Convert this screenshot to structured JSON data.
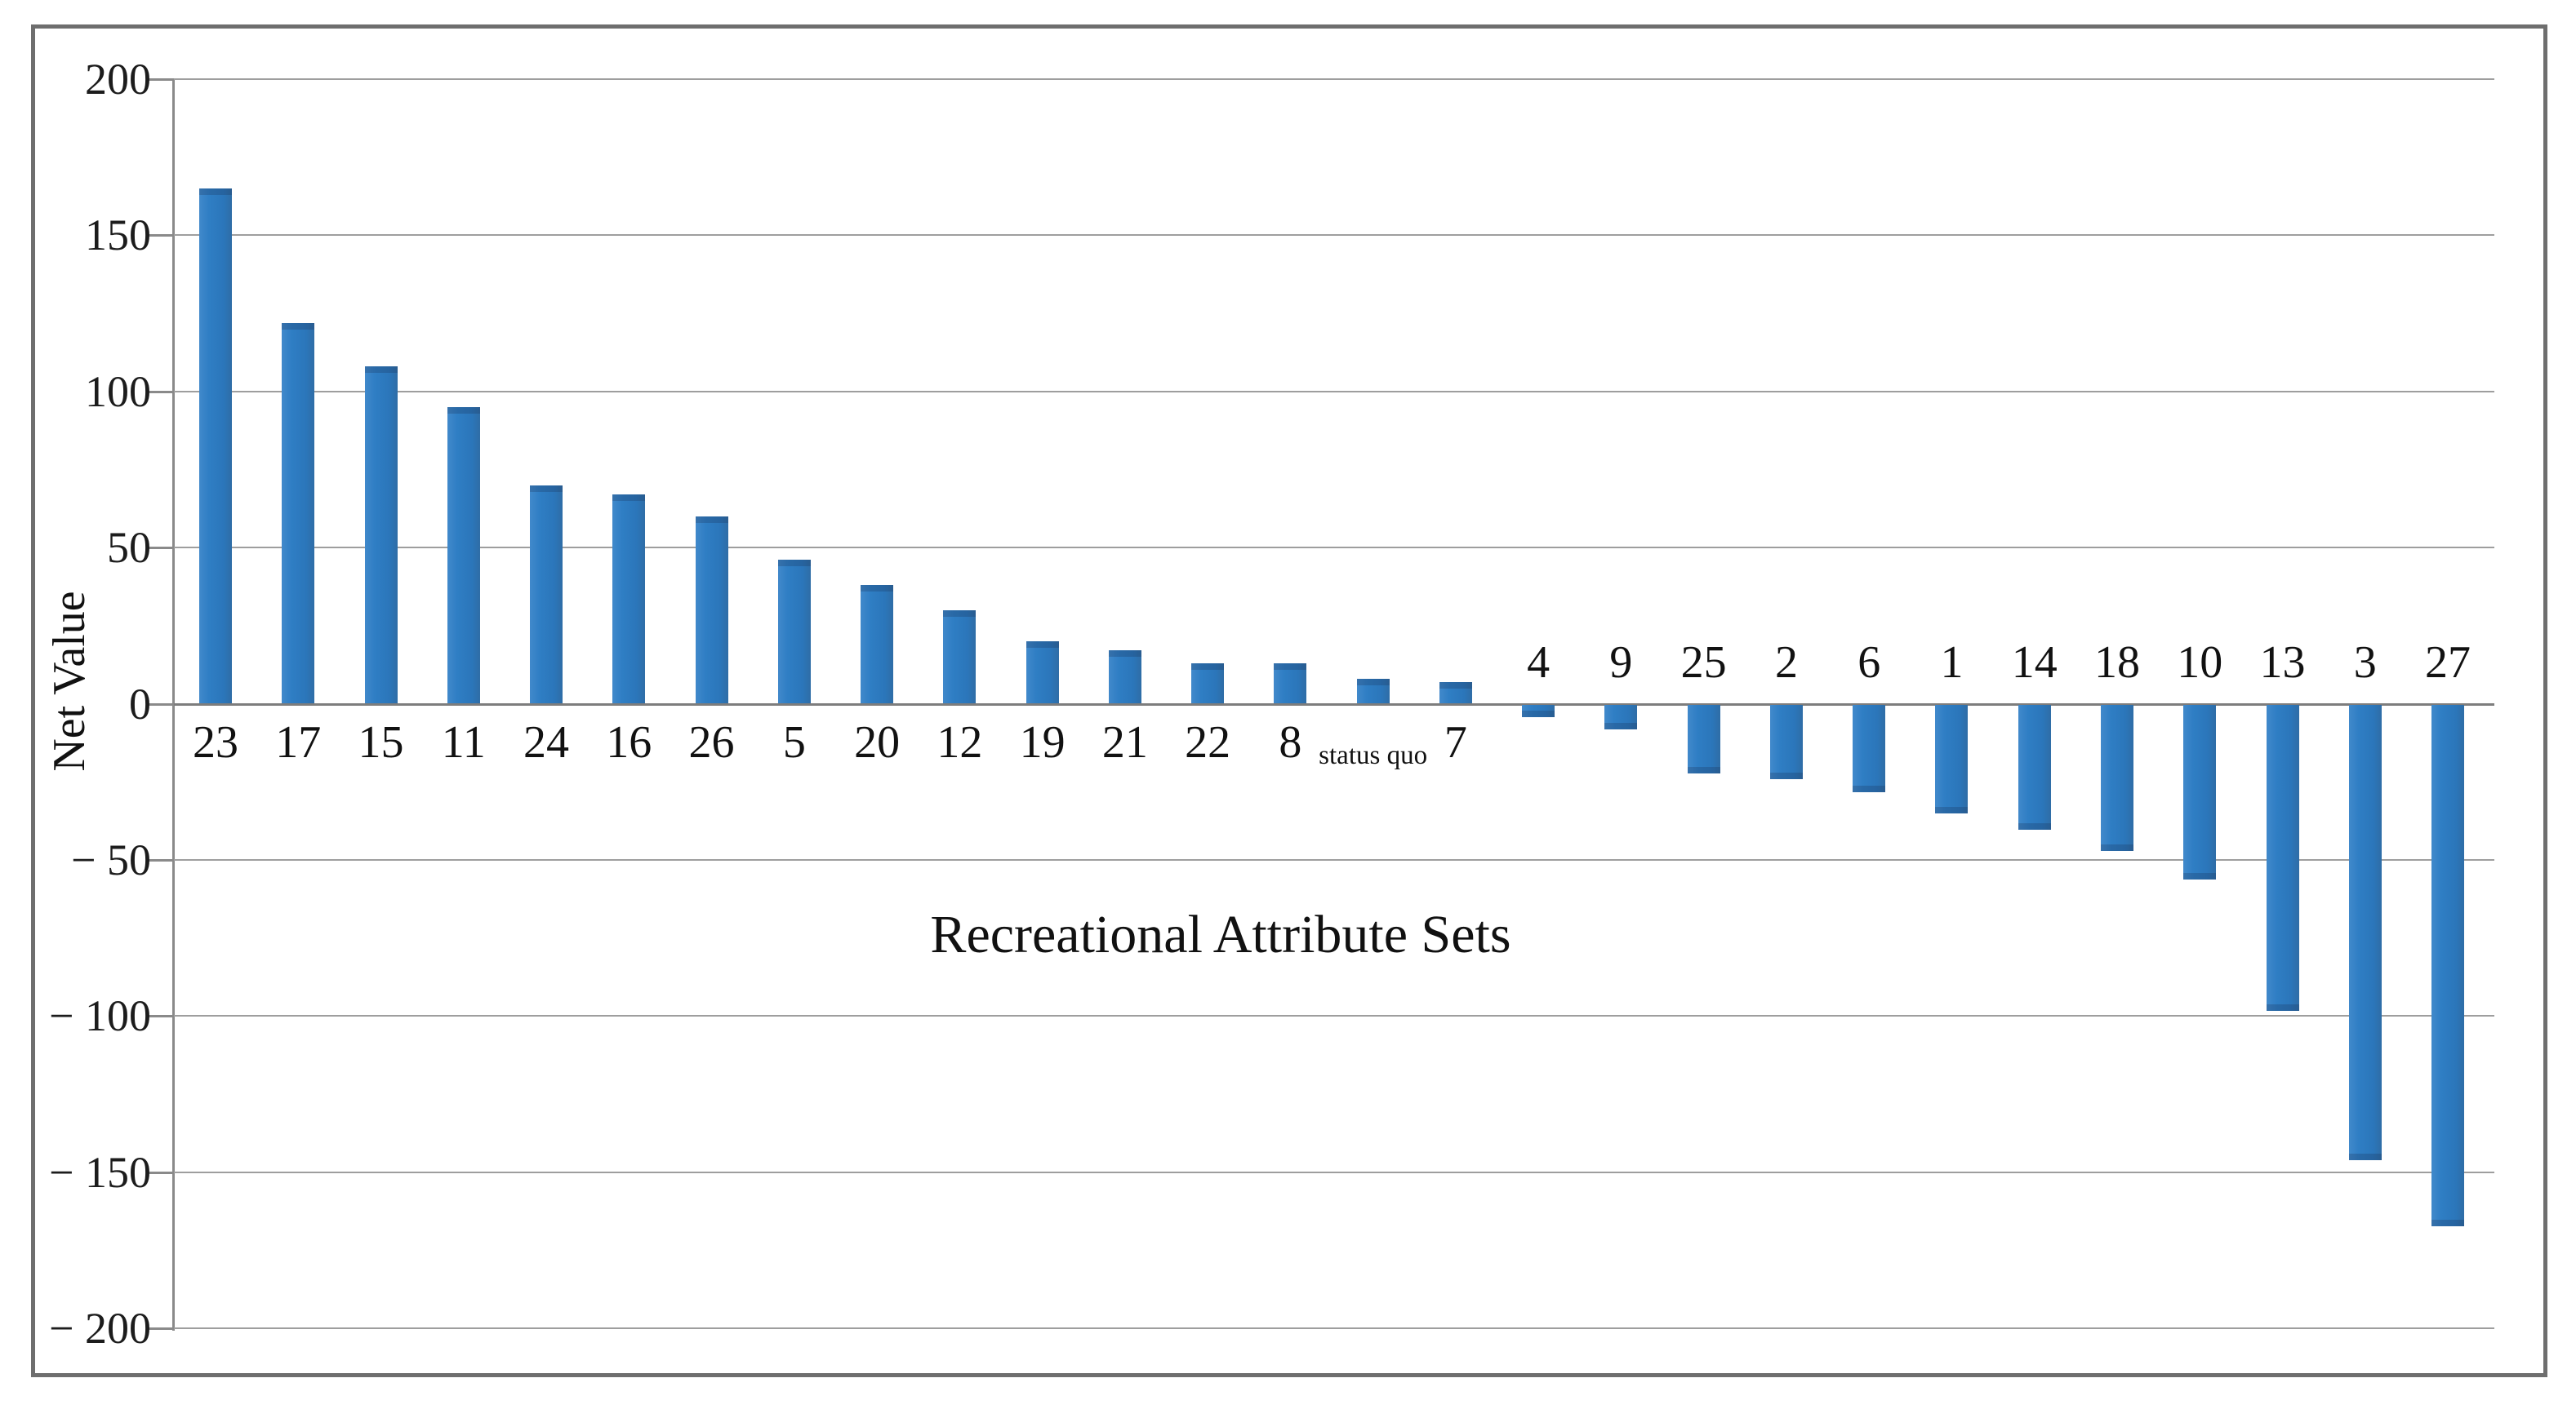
{
  "chart_data": {
    "type": "bar",
    "title": "",
    "xlabel": "Recreational Attribute Sets",
    "ylabel": "Net Value",
    "ylim": [
      -200,
      200
    ],
    "ytick_interval": 50,
    "yticks": [
      200,
      150,
      100,
      50,
      0,
      -50,
      -100,
      -150,
      -200
    ],
    "ytick_labels": [
      "200",
      "150",
      "100",
      "50",
      "0",
      "− 50",
      "− 100",
      "− 150",
      "− 200"
    ],
    "grid": true,
    "legend_position": "none",
    "bar_color": "#2d7dc2",
    "categories": [
      "23",
      "17",
      "15",
      "11",
      "24",
      "16",
      "26",
      "5",
      "20",
      "12",
      "19",
      "21",
      "22",
      "8",
      "status quo",
      "7",
      "4",
      "9",
      "25",
      "2",
      "6",
      "1",
      "14",
      "18",
      "10",
      "13",
      "3",
      "27"
    ],
    "values": [
      165,
      122,
      108,
      95,
      70,
      67,
      60,
      46,
      38,
      30,
      20,
      17,
      13,
      13,
      8,
      7,
      -4,
      -8,
      -22,
      -24,
      -28,
      -35,
      -40,
      -47,
      -56,
      -98,
      -146,
      -167
    ]
  }
}
